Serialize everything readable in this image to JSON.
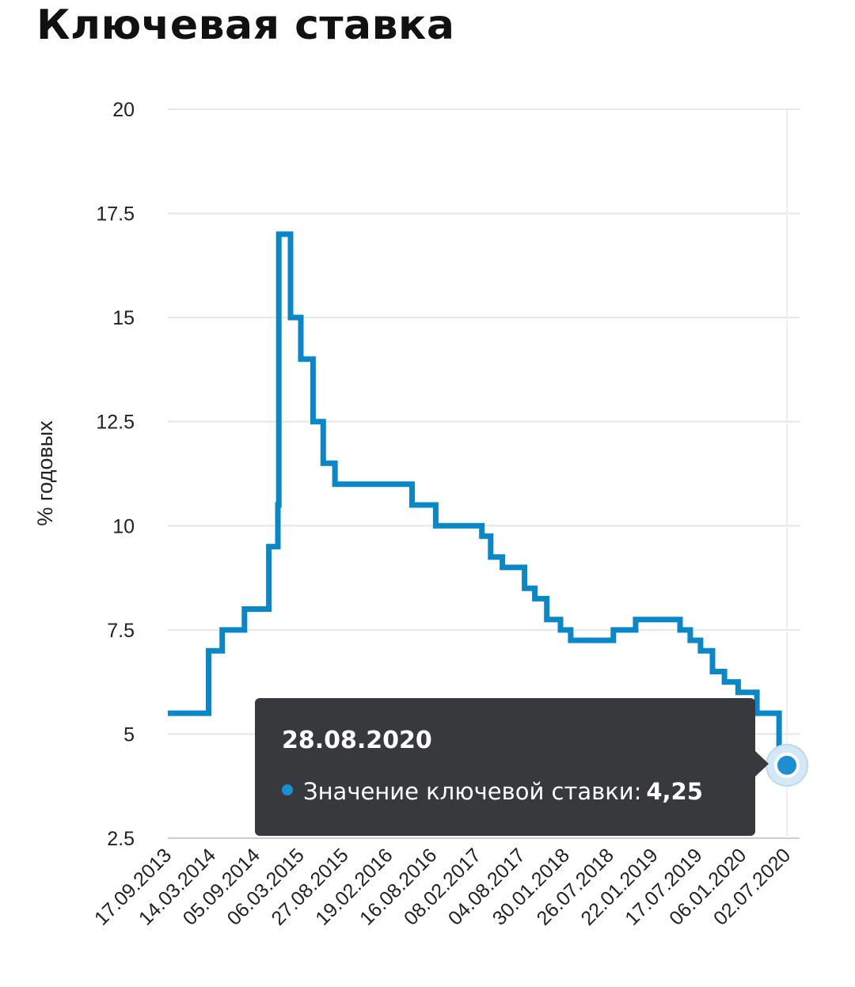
{
  "title": "Ключевая ставка",
  "colors": {
    "line": "#0a87c7",
    "grid": "#e4e6ea",
    "tooltip_bg": "#37393d",
    "tooltip_dot": "#1a8fd1"
  },
  "tooltip": {
    "date": "28.08.2020",
    "series_label": "Значение ключевой ставки:",
    "value": "4,25"
  },
  "chart_data": {
    "type": "line",
    "step": true,
    "title": "Ключевая ставка",
    "xlabel": "",
    "ylabel": "% годовых",
    "ylim": [
      2.5,
      20
    ],
    "yticks": [
      "2.5",
      "5",
      "7.5",
      "10",
      "12.5",
      "15",
      "17.5",
      "20"
    ],
    "x_tick_labels": [
      "17.09.2013",
      "14.03.2014",
      "05.09.2014",
      "06.03.2015",
      "27.08.2015",
      "19.02.2016",
      "16.08.2016",
      "08.02.2017",
      "04.08.2017",
      "30.01.2018",
      "26.07.2018",
      "22.01.2019",
      "17.07.2019",
      "06.01.2020",
      "02.07.2020"
    ],
    "grid": true,
    "legend": "none",
    "series": [
      {
        "values": [
          {
            "date": "17.09.2013",
            "y": 5.5
          },
          {
            "date": "03.03.2014",
            "y": 7.0
          },
          {
            "date": "28.04.2014",
            "y": 7.5
          },
          {
            "date": "28.07.2014",
            "y": 8.0
          },
          {
            "date": "05.11.2014",
            "y": 9.5
          },
          {
            "date": "12.12.2014",
            "y": 10.5
          },
          {
            "date": "16.12.2014",
            "y": 17.0
          },
          {
            "date": "02.02.2015",
            "y": 15.0
          },
          {
            "date": "16.03.2015",
            "y": 14.0
          },
          {
            "date": "05.05.2015",
            "y": 12.5
          },
          {
            "date": "16.06.2015",
            "y": 11.5
          },
          {
            "date": "03.08.2015",
            "y": 11.0
          },
          {
            "date": "14.06.2016",
            "y": 10.5
          },
          {
            "date": "19.09.2016",
            "y": 10.0
          },
          {
            "date": "27.03.2017",
            "y": 9.75
          },
          {
            "date": "02.05.2017",
            "y": 9.25
          },
          {
            "date": "19.06.2017",
            "y": 9.0
          },
          {
            "date": "18.09.2017",
            "y": 8.5
          },
          {
            "date": "30.10.2017",
            "y": 8.25
          },
          {
            "date": "18.12.2017",
            "y": 7.75
          },
          {
            "date": "12.02.2018",
            "y": 7.5
          },
          {
            "date": "26.03.2018",
            "y": 7.25
          },
          {
            "date": "17.09.2018",
            "y": 7.5
          },
          {
            "date": "17.12.2018",
            "y": 7.75
          },
          {
            "date": "17.06.2019",
            "y": 7.5
          },
          {
            "date": "29.07.2019",
            "y": 7.25
          },
          {
            "date": "09.09.2019",
            "y": 7.0
          },
          {
            "date": "28.10.2019",
            "y": 6.5
          },
          {
            "date": "16.12.2019",
            "y": 6.25
          },
          {
            "date": "10.02.2020",
            "y": 6.0
          },
          {
            "date": "27.04.2020",
            "y": 5.5
          },
          {
            "date": "27.07.2020",
            "y": 4.25
          },
          {
            "date": "28.08.2020",
            "y": 4.25
          }
        ]
      }
    ]
  }
}
